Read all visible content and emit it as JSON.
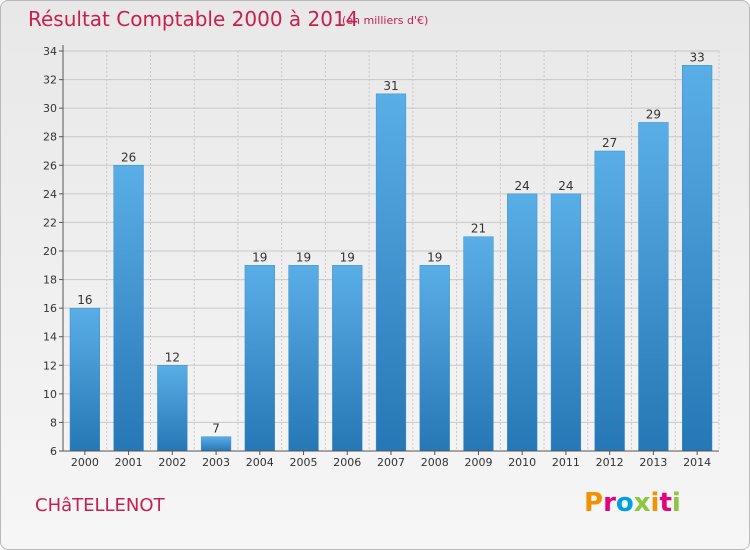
{
  "header": {
    "title": "Résultat Comptable 2000 à 2014",
    "subtitle": "(en milliers d'€)"
  },
  "footer": {
    "town": "CHâTELLENOT",
    "logo_letters": [
      "P",
      "r",
      "o",
      "x",
      "i",
      "t",
      "i"
    ]
  },
  "colors": {
    "title": "#c8204e",
    "bar_light": "#5aaee6",
    "bar_dark": "#2677b5",
    "grid": "#c8c8c8",
    "logo": [
      "#f39200",
      "#e6007e",
      "#00a0df",
      "#8dc63f",
      "#f39200",
      "#e6007e",
      "#8dc63f"
    ]
  },
  "chart_data": {
    "type": "bar",
    "title": "Résultat Comptable 2000 à 2014",
    "xlabel": "",
    "ylabel": "",
    "categories": [
      "2000",
      "2001",
      "2002",
      "2003",
      "2004",
      "2005",
      "2006",
      "2007",
      "2008",
      "2009",
      "2010",
      "2011",
      "2012",
      "2013",
      "2014"
    ],
    "values": [
      16,
      26,
      12,
      7,
      19,
      19,
      19,
      31,
      19,
      21,
      24,
      24,
      27,
      29,
      33
    ],
    "ylim": [
      6,
      34
    ],
    "yticks": [
      6,
      8,
      10,
      12,
      14,
      16,
      18,
      20,
      22,
      24,
      26,
      28,
      30,
      32,
      34
    ],
    "grid": true
  }
}
